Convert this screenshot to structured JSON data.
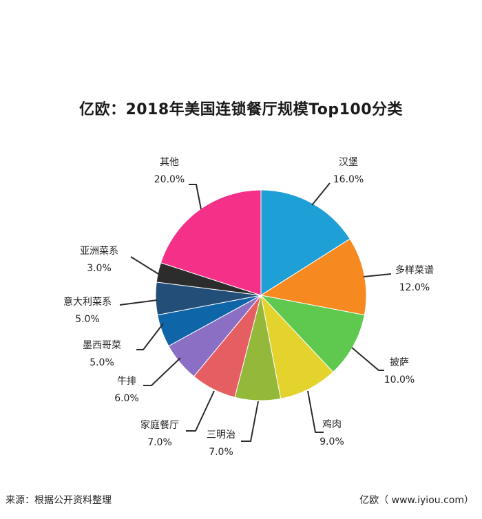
{
  "title": "亿欧：2018年美国连锁餐厅规模Top100分类",
  "source": "来源：根据公开资料整理",
  "brand": "亿欧（ www.iyiou.com）",
  "chart_data": {
    "type": "pie",
    "title": "亿欧：2018年美国连锁餐厅规模Top100分类",
    "slices": [
      {
        "label": "汉堡",
        "value": 16.0,
        "display": "16.0%",
        "color": "#1e9fd6"
      },
      {
        "label": "多样菜谱",
        "value": 12.0,
        "display": "12.0%",
        "color": "#f68a20"
      },
      {
        "label": "披萨",
        "value": 10.0,
        "display": "10.0%",
        "color": "#5ec94e"
      },
      {
        "label": "鸡肉",
        "value": 9.0,
        "display": "9.0%",
        "color": "#e4d22d"
      },
      {
        "label": "三明治",
        "value": 7.0,
        "display": "7.0%",
        "color": "#93b83a"
      },
      {
        "label": "家庭餐厅",
        "value": 7.0,
        "display": "7.0%",
        "color": "#e55f62"
      },
      {
        "label": "牛排",
        "value": 6.0,
        "display": "6.0%",
        "color": "#8a6fc4"
      },
      {
        "label": "墨西哥菜",
        "value": 5.0,
        "display": "5.0%",
        "color": "#0e65a7"
      },
      {
        "label": "意大利菜系",
        "value": 5.0,
        "display": "5.0%",
        "color": "#234e78"
      },
      {
        "label": "亚洲菜系",
        "value": 3.0,
        "display": "3.0%",
        "color": "#2c2c2c"
      },
      {
        "label": "其他",
        "value": 20.0,
        "display": "20.0%",
        "color": "#f43088"
      }
    ]
  }
}
